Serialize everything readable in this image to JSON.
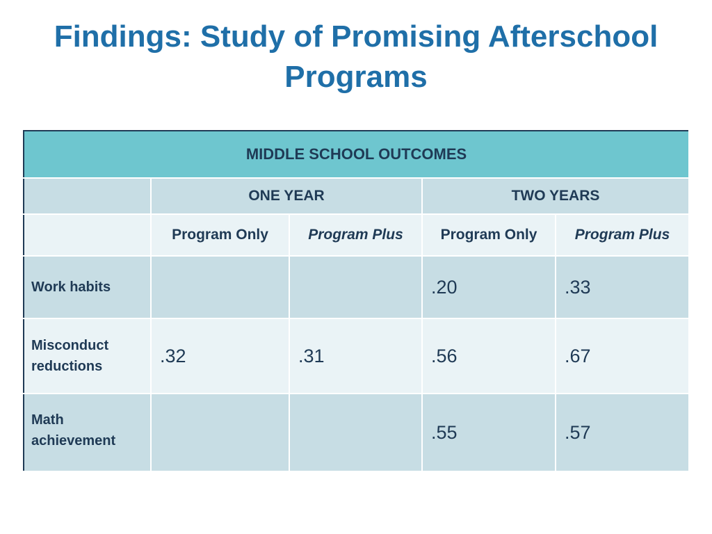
{
  "slide": {
    "title_line1": "Findings: Study of Promising Afterschool",
    "title_line2": "Programs"
  },
  "table": {
    "banner": "MIDDLE SCHOOL OUTCOMES",
    "groups": [
      "ONE YEAR",
      "TWO YEARS"
    ],
    "subheaders": [
      "Program Only",
      "Program Plus",
      "Program Only",
      "Program Plus"
    ],
    "rows": [
      {
        "label": "Work habits",
        "values": [
          "",
          "",
          ".20",
          ".33"
        ]
      },
      {
        "label_line1": "Misconduct",
        "label_line2": "reductions",
        "values": [
          ".32",
          ".31",
          ".56",
          ".67"
        ]
      },
      {
        "label_line1": "Math",
        "label_line2": "achievement",
        "values": [
          "",
          "",
          ".55",
          ".57"
        ]
      }
    ]
  },
  "colors": {
    "title": "#1f6fa8",
    "banner_bg": "#6ec6cf",
    "dark_row_bg": "#c7dde4",
    "light_row_bg": "#eaf3f6",
    "text": "#1f3a55"
  }
}
